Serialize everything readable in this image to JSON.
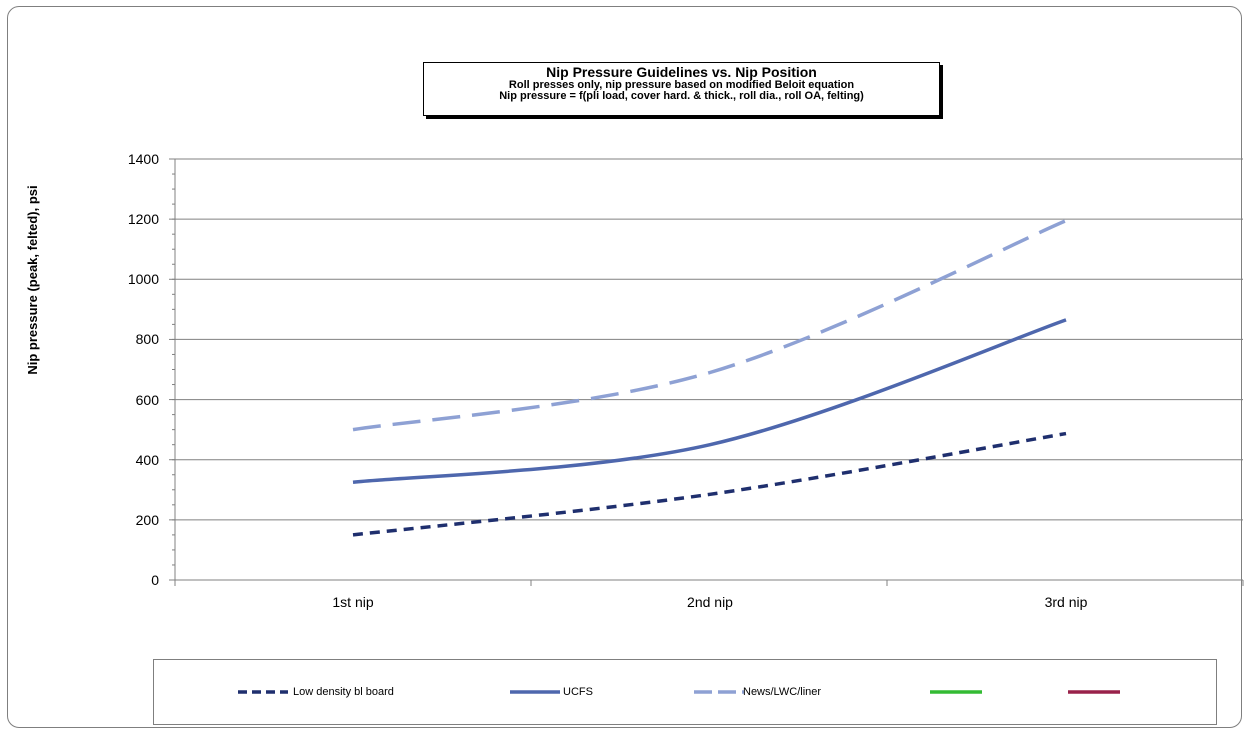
{
  "chart_data": {
    "type": "line",
    "title": "Nip Pressure Guidelines vs. Nip Position",
    "subtitle_lines": [
      "Roll presses only, nip pressure based on modified Beloit equation",
      "Nip pressure = f(pli load, cover hard. & thick., roll dia., roll OA, felting)"
    ],
    "xlabel": "",
    "ylabel": "Nip pressure (peak, felted), psi",
    "categories": [
      "1st nip",
      "2nd nip",
      "3rd nip"
    ],
    "ylim": [
      0,
      1400
    ],
    "yticks": [
      "0",
      "200",
      "400",
      "600",
      "800",
      "1000",
      "1200",
      "1400"
    ],
    "grid": true,
    "legend_position": "bottom",
    "series": [
      {
        "name": "Low density bl board",
        "values": [
          150,
          285,
          487
        ],
        "color": "#1f2f6e",
        "dash": "dashed-short",
        "smooth": true
      },
      {
        "name": "UCFS",
        "values": [
          325,
          450,
          865
        ],
        "color": "#4e67ad",
        "dash": "solid",
        "smooth": true
      },
      {
        "name": "News/LWC/liner",
        "values": [
          500,
          690,
          1195
        ],
        "color": "#8ea1d4",
        "dash": "dashed-long",
        "smooth": true
      }
    ],
    "legend_extra_swatches": [
      {
        "color": "#33bb33"
      },
      {
        "color": "#99224a"
      }
    ]
  }
}
